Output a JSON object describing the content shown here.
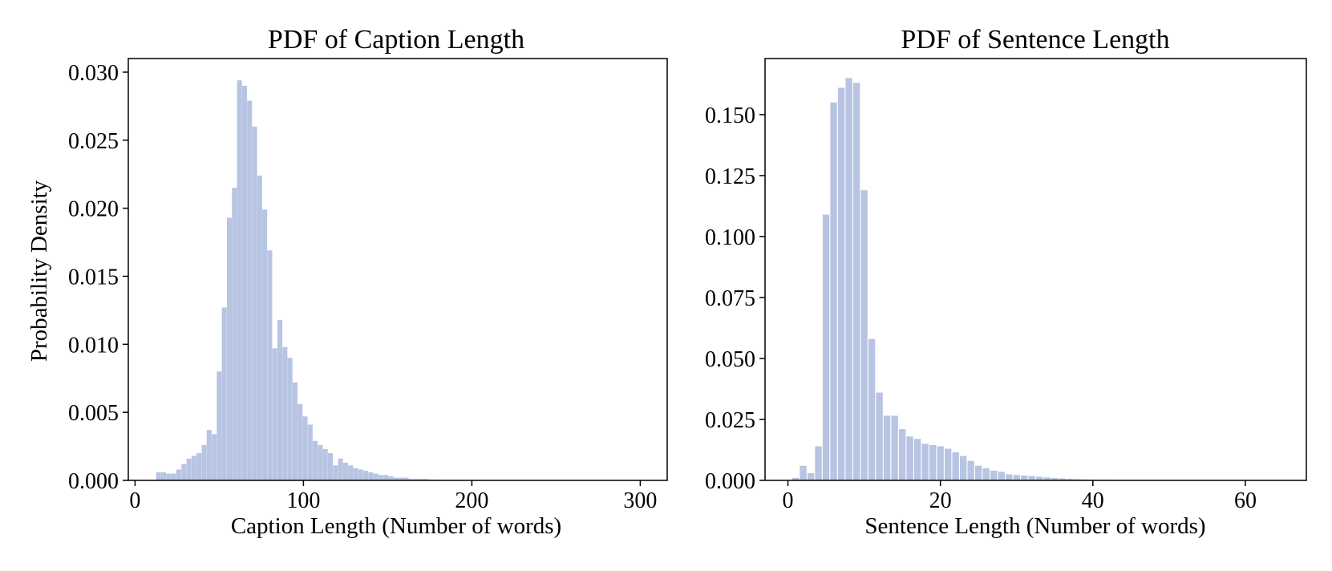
{
  "colors": {
    "bar": "#b7c4e2",
    "axis": "#000000",
    "background": "#ffffff"
  },
  "chart_data": [
    {
      "type": "bar",
      "title": "PDF of Caption Length",
      "xlabel": "Caption Length (Number of words)",
      "ylabel": "Probability Density",
      "xlim": [
        -4,
        316
      ],
      "ylim": [
        0,
        0.031
      ],
      "xticks": [
        0,
        100,
        200,
        300
      ],
      "xtick_labels": [
        "0",
        "100",
        "200",
        "300"
      ],
      "yticks": [
        0,
        0.005,
        0.01,
        0.015,
        0.02,
        0.025,
        0.03
      ],
      "ytick_labels": [
        "0.000",
        "0.005",
        "0.010",
        "0.015",
        "0.020",
        "0.025",
        "0.030"
      ],
      "grid": false,
      "bin_width": 2.9,
      "x": [
        14,
        17,
        20,
        23,
        26,
        29,
        32,
        35,
        38,
        41,
        44,
        47,
        50,
        53,
        56,
        59,
        62,
        65,
        68,
        71,
        74,
        77,
        80,
        83,
        86,
        89,
        92,
        95,
        98,
        101,
        104,
        107,
        110,
        113,
        116,
        119,
        122,
        125,
        128,
        131,
        134,
        137,
        140,
        143,
        146,
        149,
        152,
        155,
        158,
        161,
        164,
        167,
        170,
        173,
        176,
        179,
        182,
        185
      ],
      "values": [
        0.0006,
        0.0006,
        0.0005,
        0.0005,
        0.0008,
        0.0012,
        0.0016,
        0.0018,
        0.002,
        0.0026,
        0.0037,
        0.0034,
        0.008,
        0.0127,
        0.0193,
        0.0215,
        0.0294,
        0.029,
        0.0279,
        0.026,
        0.0224,
        0.0199,
        0.0169,
        0.0097,
        0.0118,
        0.0098,
        0.009,
        0.0072,
        0.0056,
        0.0047,
        0.0041,
        0.0029,
        0.0026,
        0.0023,
        0.002,
        0.0011,
        0.0016,
        0.0013,
        0.0011,
        0.0009,
        0.0008,
        0.0007,
        0.0006,
        0.0005,
        0.0004,
        0.0004,
        0.0003,
        0.0002,
        0.0002,
        0.0002,
        0.0001,
        0.0001,
        0.0001,
        0.0001,
        5e-05,
        5e-05,
        3e-05,
        3e-05
      ]
    },
    {
      "type": "bar",
      "title": "PDF of Sentence Length",
      "xlabel": "Sentence Length (Number of words)",
      "ylabel": "",
      "xlim": [
        -3,
        68
      ],
      "ylim": [
        0,
        0.173
      ],
      "xticks": [
        0,
        20,
        40,
        60
      ],
      "xtick_labels": [
        "0",
        "20",
        "40",
        "60"
      ],
      "yticks": [
        0,
        0.025,
        0.05,
        0.075,
        0.1,
        0.125,
        0.15
      ],
      "ytick_labels": [
        "0.000",
        "0.025",
        "0.050",
        "0.075",
        "0.100",
        "0.125",
        "0.150"
      ],
      "grid": false,
      "bin_width": 0.88,
      "x": [
        1,
        2,
        3,
        4,
        5,
        6,
        7,
        8,
        9,
        10,
        11,
        12,
        13,
        14,
        15,
        16,
        17,
        18,
        19,
        20,
        21,
        22,
        23,
        24,
        25,
        26,
        27,
        28,
        29,
        30,
        31,
        32,
        33,
        34,
        35,
        36,
        37,
        38,
        39,
        40,
        41,
        42,
        43,
        44,
        45
      ],
      "values": [
        0.001,
        0.006,
        0.003,
        0.014,
        0.109,
        0.155,
        0.161,
        0.165,
        0.163,
        0.119,
        0.058,
        0.036,
        0.0265,
        0.0265,
        0.021,
        0.018,
        0.017,
        0.015,
        0.0145,
        0.014,
        0.013,
        0.0115,
        0.01,
        0.008,
        0.006,
        0.005,
        0.004,
        0.0035,
        0.0025,
        0.0022,
        0.002,
        0.0018,
        0.0015,
        0.0012,
        0.001,
        0.0008,
        0.0006,
        0.0005,
        0.0004,
        0.0003,
        0.0002,
        0.0002,
        0.0001,
        0.0001,
        0.0001
      ]
    }
  ]
}
